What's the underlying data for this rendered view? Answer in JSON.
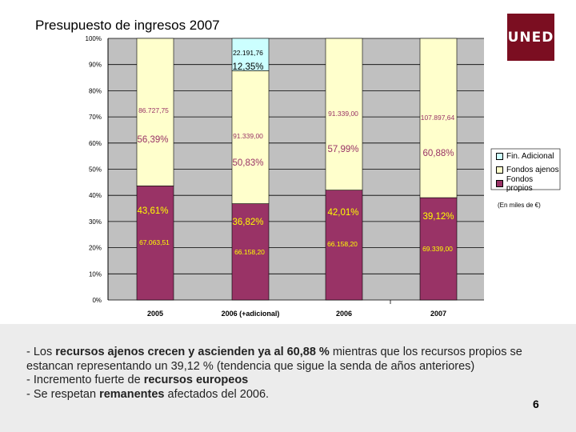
{
  "slide": {
    "title": "Presupuesto de ingresos 2007",
    "logo": "UNED",
    "page_number": "6"
  },
  "chart_data": {
    "type": "bar",
    "stacked": true,
    "percent": true,
    "categories": [
      "2005",
      "2006 (+adicional)",
      "2006",
      "2007"
    ],
    "ylim": [
      0,
      100
    ],
    "yticks": [
      "0%",
      "10%",
      "20%",
      "30%",
      "40%",
      "50%",
      "60%",
      "70%",
      "80%",
      "90%",
      "100%"
    ],
    "units_note": "(En miles de €)",
    "legend_position": "right",
    "series": [
      {
        "name": "Fondos propios",
        "color": "#993366",
        "values": [
          43.61,
          36.82,
          42.01,
          39.12
        ],
        "pct_labels": [
          "43,61%",
          "36,82%",
          "42,01%",
          "39,12%"
        ],
        "amount_labels": [
          "67.063,51",
          "66.158,20",
          "66.158,20",
          "69.339,00"
        ]
      },
      {
        "name": "Fondos ajenos",
        "color": "#ffffcc",
        "values": [
          56.39,
          50.83,
          57.99,
          60.88
        ],
        "pct_labels": [
          "56,39%",
          "50,83%",
          "57,99%",
          "60,88%"
        ],
        "amount_labels": [
          "86.727,75",
          "91.339,00",
          "91.339,00",
          "107.897,64"
        ]
      },
      {
        "name": "Fin. Adicional",
        "color": "#ccffff",
        "values": [
          0,
          12.35,
          0,
          0
        ],
        "pct_labels": [
          "",
          "12,35%",
          "",
          ""
        ],
        "amount_labels": [
          "",
          "22.191,76",
          "",
          ""
        ]
      }
    ],
    "plot_background": "#c0c0c0"
  },
  "notes": [
    {
      "parts": [
        {
          "t": "- Los "
        },
        {
          "t": "recursos ajenos crecen y ascienden ya al 60,88 %",
          "bold": true
        },
        {
          "t": " mientras que los recursos propios se estancan representando un 39,12 % (tendencia que sigue la senda  de años anteriores)"
        }
      ]
    },
    {
      "parts": [
        {
          "t": "- Incremento fuerte de "
        },
        {
          "t": "recursos europeos",
          "bold": true
        }
      ]
    },
    {
      "parts": [
        {
          "t": "- Se respetan "
        },
        {
          "t": "remanentes",
          "bold": true
        },
        {
          "t": " afectados del 2006."
        }
      ]
    }
  ]
}
